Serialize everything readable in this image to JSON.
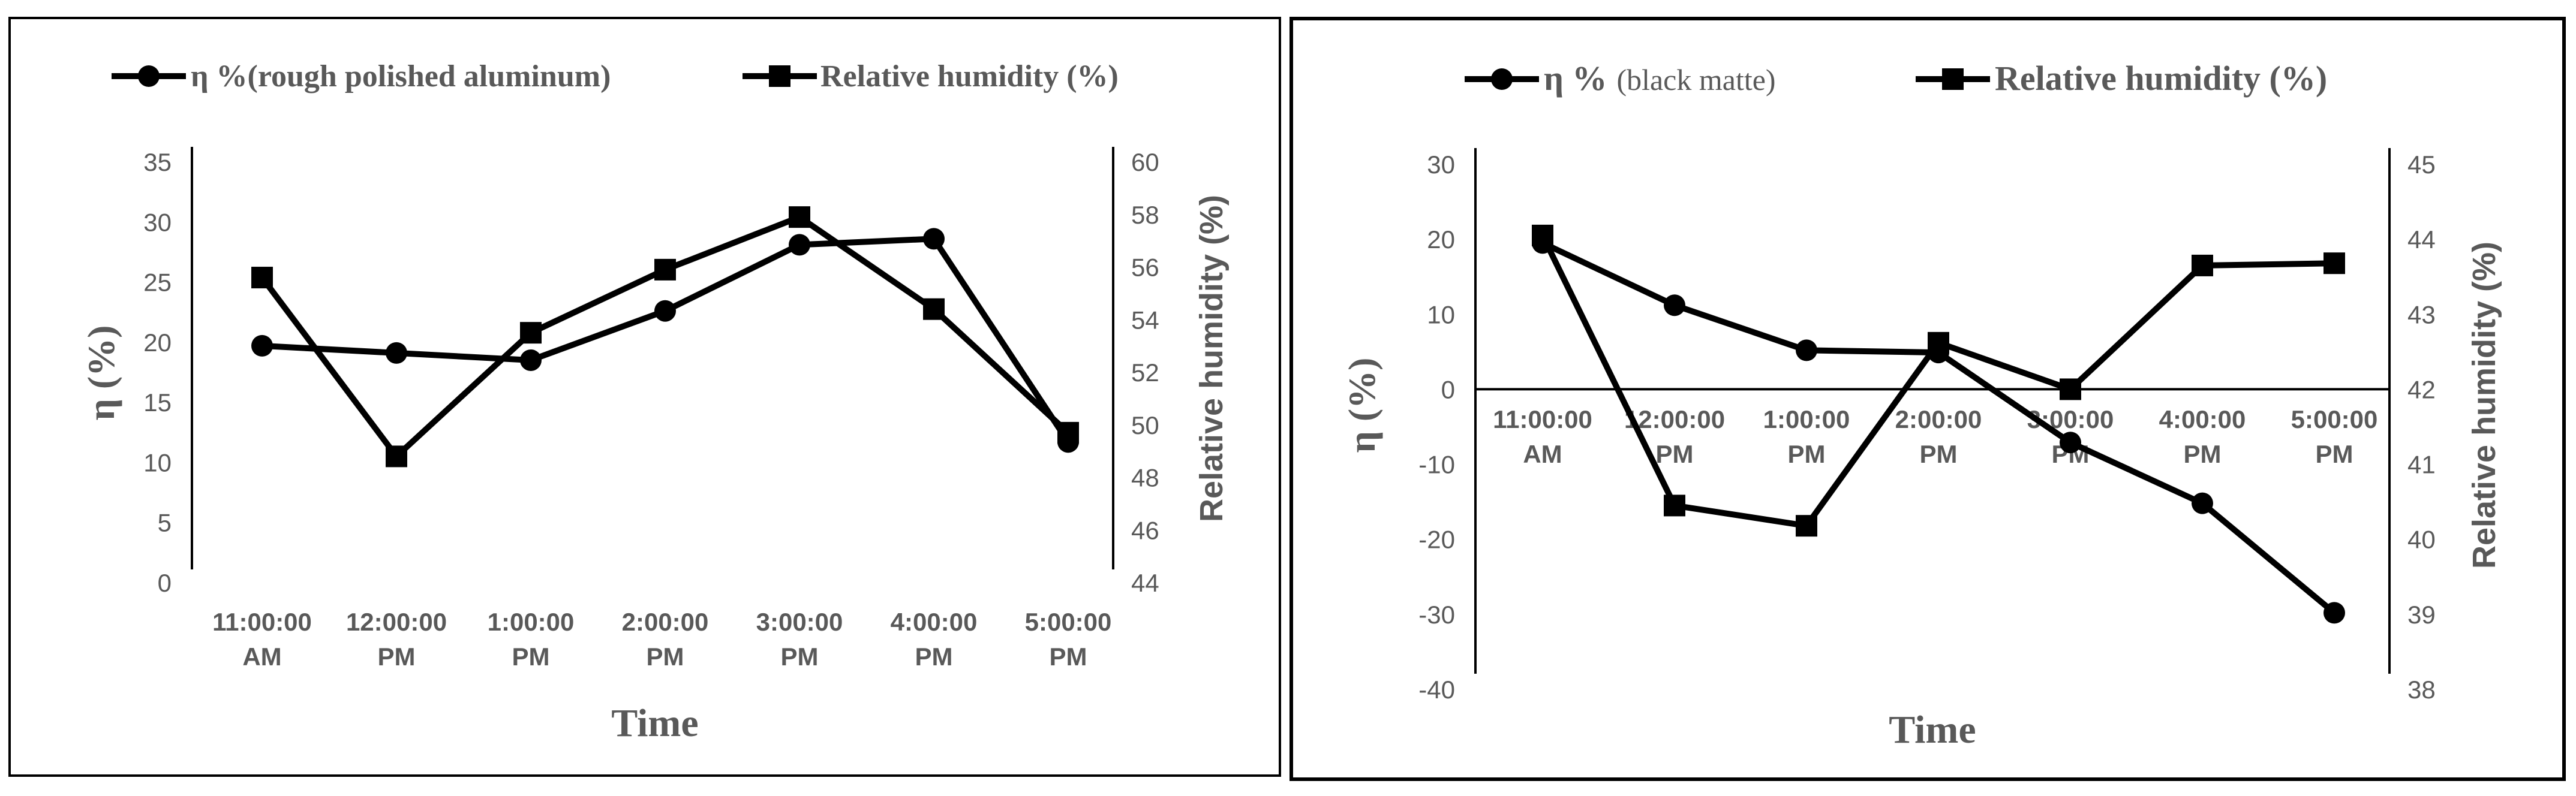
{
  "chart_data": [
    {
      "type": "line",
      "categories": [
        "11:00:00 AM",
        "12:00:00 PM",
        "1:00:00 PM",
        "2:00:00 PM",
        "3:00:00 PM",
        "4:00:00 PM",
        "5:00:00 PM"
      ],
      "category_lines": [
        [
          "11:00:00",
          "AM"
        ],
        [
          "12:00:00",
          "PM"
        ],
        [
          "1:00:00",
          "PM"
        ],
        [
          "2:00:00",
          "PM"
        ],
        [
          "3:00:00",
          "PM"
        ],
        [
          "4:00:00",
          "PM"
        ],
        [
          "5:00:00",
          "PM"
        ]
      ],
      "series": [
        {
          "name": "η %(rough polished aluminum)",
          "axis": "left",
          "marker": "circle",
          "values": [
            19.7,
            19.1,
            18.5,
            22.6,
            28.1,
            28.6,
            11.7
          ]
        },
        {
          "name": "Relative  humidity (%)",
          "axis": "right",
          "marker": "square",
          "values": [
            55.6,
            48.8,
            53.5,
            55.9,
            57.9,
            54.4,
            49.7
          ]
        }
      ],
      "legend": {
        "series1_label": "η %(rough polished aluminum)",
        "series2_label": "Relative  humidity (%)",
        "placement": "top"
      },
      "xlabel": "Time",
      "ylabel": "η (%)",
      "ylabel_right": "Relative humidity (%)",
      "ylim": [
        0,
        35
      ],
      "yticks": [
        "0",
        "5",
        "10",
        "15",
        "20",
        "25",
        "30",
        "35"
      ],
      "ylim_right": [
        44,
        60
      ],
      "yticks_right": [
        "44",
        "46",
        "48",
        "50",
        "52",
        "54",
        "56",
        "58",
        "60"
      ]
    },
    {
      "type": "line",
      "categories": [
        "11:00:00 AM",
        "12:00:00 PM",
        "1:00:00 PM",
        "2:00:00 PM",
        "3:00:00 PM",
        "4:00:00 PM",
        "5:00:00 PM"
      ],
      "category_lines": [
        [
          "11:00:00",
          "AM"
        ],
        [
          "12:00:00",
          "PM"
        ],
        [
          "1:00:00",
          "PM"
        ],
        [
          "2:00:00",
          "PM"
        ],
        [
          "3:00:00",
          "PM"
        ],
        [
          "4:00:00",
          "PM"
        ],
        [
          "5:00:00",
          "PM"
        ]
      ],
      "series": [
        {
          "name": "η % (black matte)",
          "axis": "left",
          "marker": "circle",
          "values": [
            19.5,
            11.2,
            5.2,
            4.9,
            -7.1,
            -15.2,
            -29.8
          ]
        },
        {
          "name": "Relative humidity (%)",
          "axis": "right",
          "marker": "square",
          "values": [
            44.05,
            40.45,
            40.18,
            42.62,
            42.0,
            43.65,
            43.68
          ]
        }
      ],
      "legend": {
        "series1_main": "η %",
        "series1_sub": "(black matte)",
        "series2_label": "Relative humidity (%)",
        "placement": "top"
      },
      "xlabel": "Time",
      "ylabel": "η (%)",
      "ylabel_right": "Relative humidity (%)",
      "ylim": [
        -40,
        30
      ],
      "yticks": [
        "-40",
        "-30",
        "-20",
        "-10",
        "0",
        "10",
        "20",
        "30"
      ],
      "ylim_right": [
        38,
        45
      ],
      "yticks_right": [
        "38",
        "39",
        "40",
        "41",
        "42",
        "43",
        "44",
        "45"
      ]
    }
  ]
}
